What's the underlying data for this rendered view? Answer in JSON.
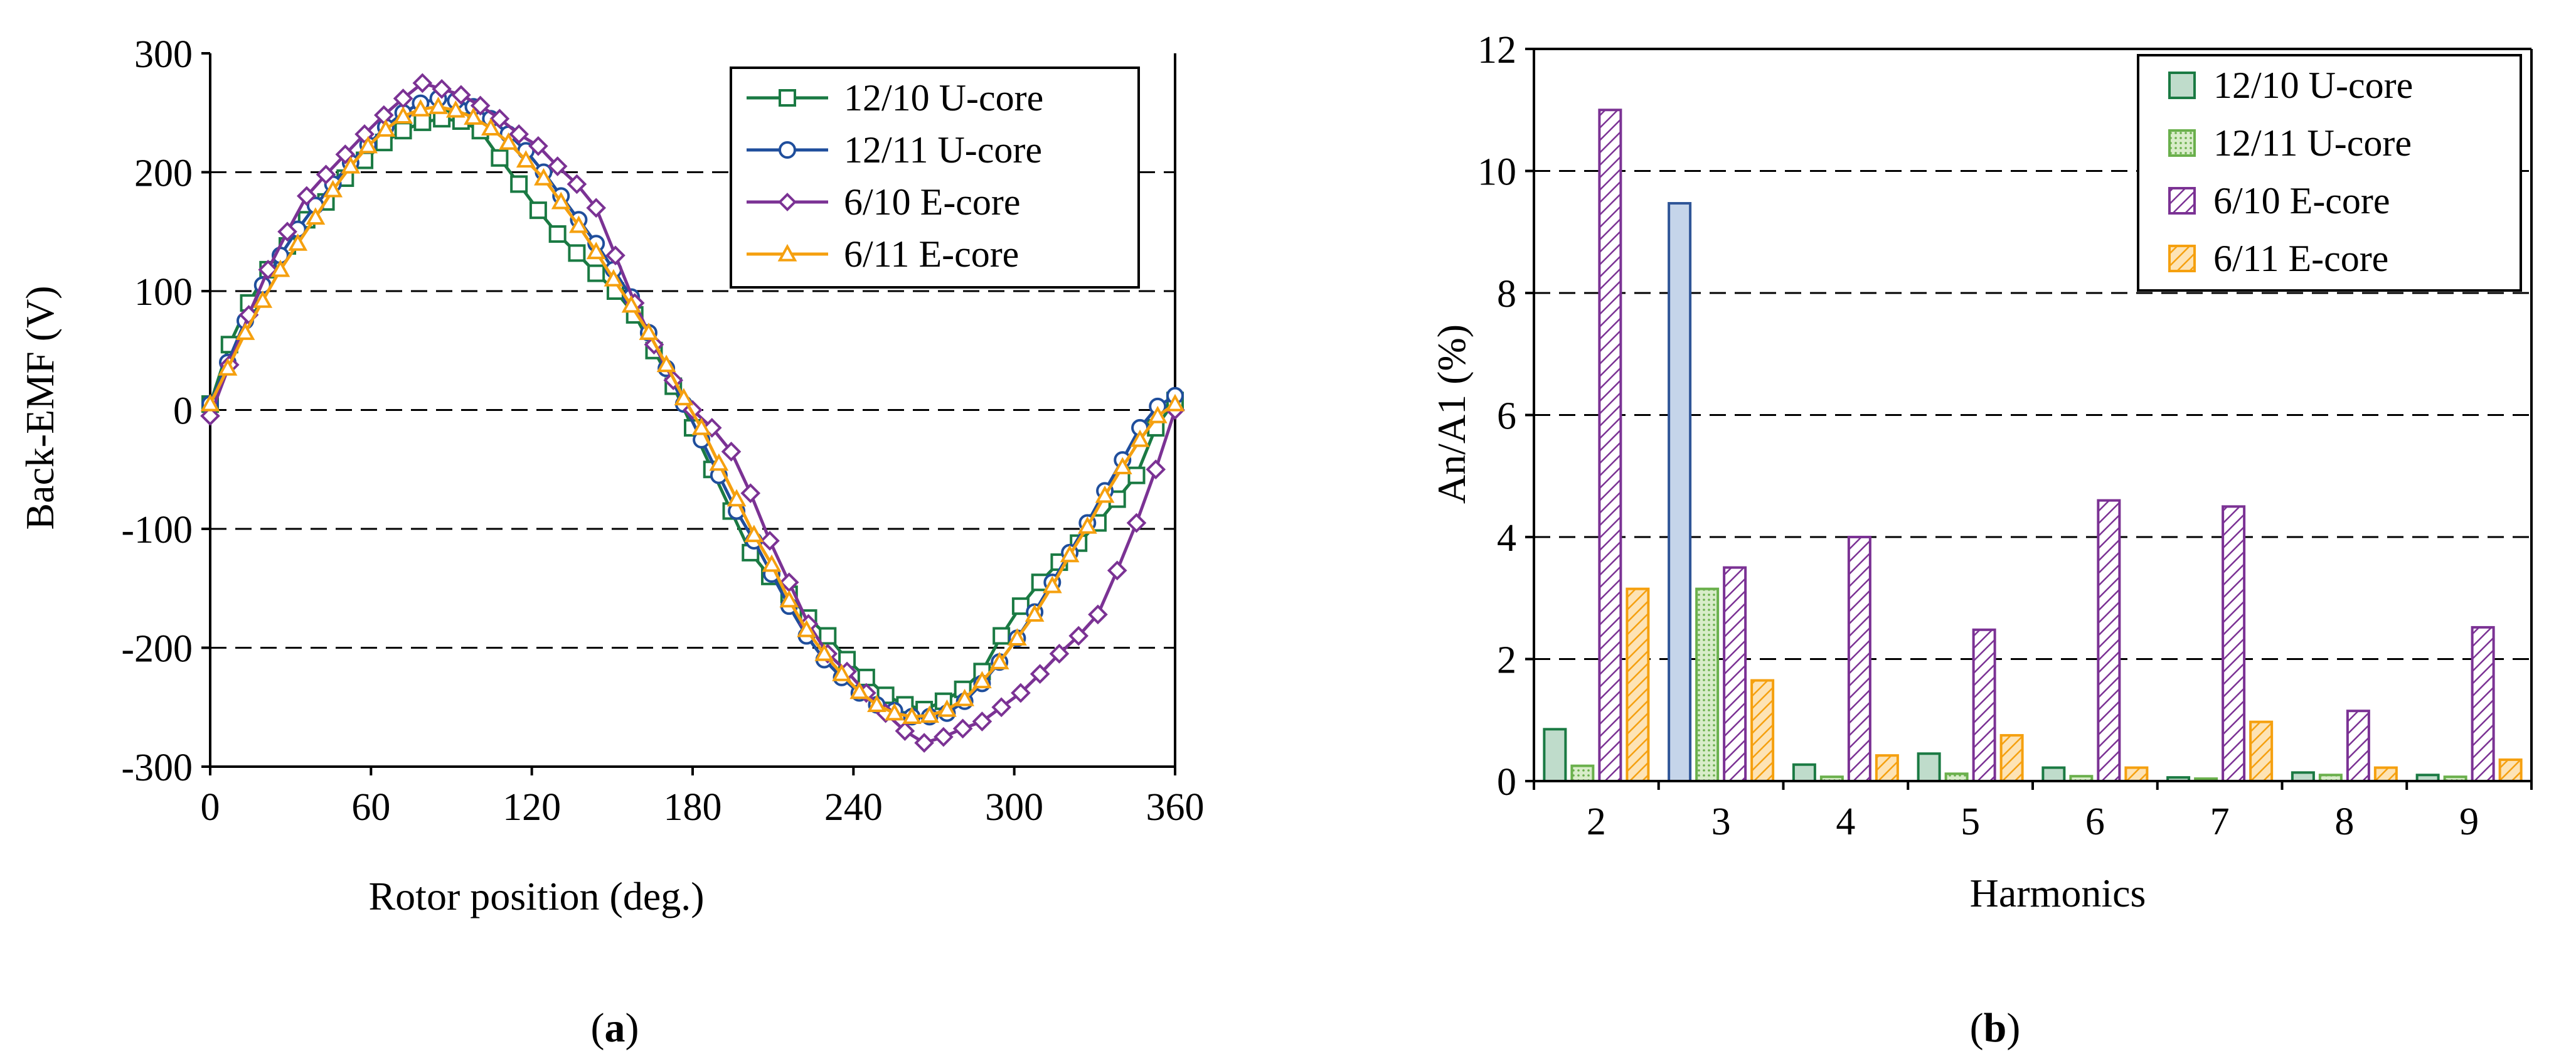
{
  "chart_data": [
    {
      "type": "line",
      "panel_label_open": "(",
      "panel_label_letter": "a",
      "panel_label_close": ")",
      "xlabel": "Rotor position (deg.)",
      "ylabel": "Back-EMF (V)",
      "xlim": [
        0,
        360
      ],
      "ylim": [
        -300,
        300
      ],
      "xticks": [
        0,
        60,
        120,
        180,
        240,
        300,
        360
      ],
      "yticks": [
        -300,
        -200,
        -100,
        0,
        100,
        200,
        300
      ],
      "grid": "horizontal dashed",
      "legend_position": "top-right",
      "series": [
        {
          "name": "12/10 U-core",
          "color": "#1a7a43",
          "marker": "square",
          "x": [
            0,
            7.2,
            14.4,
            21.6,
            28.8,
            36,
            43.2,
            50.4,
            57.6,
            64.8,
            72,
            79.2,
            86.4,
            93.6,
            100.8,
            108,
            115.2,
            122.4,
            129.6,
            136.8,
            144,
            151.2,
            158.4,
            165.6,
            172.8,
            180,
            187.2,
            194.4,
            201.6,
            208.8,
            216,
            223.2,
            230.4,
            237.6,
            244.8,
            252,
            259.2,
            266.4,
            273.6,
            280.8,
            288,
            295.2,
            302.4,
            309.6,
            316.8,
            324,
            331.2,
            338.4,
            345.6,
            352.8,
            360
          ],
          "y": [
            5,
            55,
            90,
            118,
            138,
            160,
            175,
            195,
            210,
            225,
            235,
            242,
            245,
            243,
            235,
            212,
            190,
            168,
            148,
            132,
            115,
            100,
            80,
            50,
            20,
            -15,
            -50,
            -85,
            -120,
            -140,
            -155,
            -175,
            -190,
            -210,
            -225,
            -240,
            -248,
            -252,
            -245,
            -235,
            -220,
            -190,
            -165,
            -145,
            -128,
            -112,
            -95,
            -75,
            -55,
            -15,
            8
          ]
        },
        {
          "name": "12/11 U-core",
          "color": "#1f4e9c",
          "marker": "circle",
          "x": [
            0,
            6.55,
            13.1,
            19.6,
            26.2,
            32.7,
            39.3,
            45.8,
            52.4,
            58.9,
            65.5,
            72,
            78.5,
            85.1,
            91.6,
            98.2,
            104.7,
            111.3,
            117.8,
            124.4,
            130.9,
            137.5,
            144,
            150.5,
            157.1,
            163.6,
            170.2,
            176.7,
            183.3,
            189.8,
            196.4,
            202.9,
            209.5,
            216,
            222.5,
            229.1,
            235.6,
            242.2,
            248.7,
            255.3,
            261.8,
            268.4,
            274.9,
            281.5,
            288,
            294.5,
            301.1,
            307.6,
            314.2,
            320.7,
            327.3,
            333.8,
            340.4,
            346.9,
            353.5,
            360
          ],
          "y": [
            5,
            40,
            75,
            105,
            130,
            152,
            172,
            190,
            208,
            223,
            238,
            250,
            258,
            262,
            260,
            255,
            245,
            232,
            218,
            200,
            180,
            160,
            140,
            118,
            95,
            65,
            35,
            5,
            -25,
            -55,
            -85,
            -110,
            -138,
            -165,
            -190,
            -210,
            -225,
            -238,
            -248,
            -253,
            -258,
            -258,
            -255,
            -245,
            -230,
            -212,
            -192,
            -170,
            -145,
            -120,
            -95,
            -68,
            -42,
            -15,
            3,
            12
          ]
        },
        {
          "name": "6/10 E-core",
          "color": "#7b3294",
          "marker": "diamond",
          "x": [
            0,
            7.2,
            14.4,
            21.6,
            28.8,
            36,
            43.2,
            50.4,
            57.6,
            64.8,
            72,
            79.2,
            86.4,
            93.6,
            100.8,
            108,
            115.2,
            122.4,
            129.6,
            136.8,
            144,
            151.2,
            158.4,
            165.6,
            172.8,
            180,
            187.2,
            194.4,
            201.6,
            208.8,
            216,
            223.2,
            230.4,
            237.6,
            244.8,
            252,
            259.2,
            266.4,
            273.6,
            280.8,
            288,
            295.2,
            302.4,
            309.6,
            316.8,
            324,
            331.2,
            338.4,
            345.6,
            352.8,
            360
          ],
          "y": [
            -5,
            38,
            80,
            118,
            150,
            180,
            198,
            215,
            232,
            248,
            262,
            275,
            270,
            265,
            256,
            245,
            232,
            222,
            205,
            190,
            170,
            130,
            90,
            55,
            25,
            0,
            -15,
            -35,
            -70,
            -110,
            -145,
            -180,
            -205,
            -220,
            -238,
            -255,
            -270,
            -280,
            -275,
            -268,
            -262,
            -250,
            -238,
            -222,
            -205,
            -190,
            -172,
            -135,
            -95,
            -50,
            0
          ]
        },
        {
          "name": "6/11 E-core",
          "color": "#f5a00f",
          "marker": "triangle",
          "x": [
            0,
            6.55,
            13.1,
            19.6,
            26.2,
            32.7,
            39.3,
            45.8,
            52.4,
            58.9,
            65.5,
            72,
            78.5,
            85.1,
            91.6,
            98.2,
            104.7,
            111.3,
            117.8,
            124.4,
            130.9,
            137.5,
            144,
            150.5,
            157.1,
            163.6,
            170.2,
            176.7,
            183.3,
            189.8,
            196.4,
            202.9,
            209.5,
            216,
            222.5,
            229.1,
            235.6,
            242.2,
            248.7,
            255.3,
            261.8,
            268.4,
            274.9,
            281.5,
            288,
            294.5,
            301.1,
            307.6,
            314.2,
            320.7,
            327.3,
            333.8,
            340.4,
            346.9,
            353.5,
            360
          ],
          "y": [
            5,
            35,
            65,
            92,
            118,
            140,
            162,
            185,
            205,
            222,
            236,
            247,
            253,
            255,
            252,
            246,
            237,
            225,
            210,
            195,
            175,
            155,
            133,
            110,
            88,
            65,
            38,
            10,
            -15,
            -45,
            -75,
            -105,
            -130,
            -160,
            -185,
            -205,
            -222,
            -237,
            -248,
            -255,
            -258,
            -257,
            -252,
            -243,
            -228,
            -212,
            -192,
            -172,
            -148,
            -122,
            -98,
            -72,
            -48,
            -25,
            -5,
            5
          ]
        }
      ]
    },
    {
      "type": "bar",
      "panel_label_open": "(",
      "panel_label_letter": "b",
      "panel_label_close": ")",
      "xlabel": "Harmonics",
      "ylabel": "An/A1 (%)",
      "categories": [
        "2",
        "3",
        "4",
        "5",
        "6",
        "7",
        "8",
        "9"
      ],
      "ylim": [
        0,
        12
      ],
      "yticks": [
        0,
        2,
        4,
        6,
        8,
        10,
        12
      ],
      "grid": "horizontal dashed",
      "legend_position": "top-right",
      "series": [
        {
          "name": "12/10 U-core",
          "color": "#1a7a43",
          "fill": "#bfdccb",
          "pattern": "solid",
          "values": [
            0.85,
            0.0,
            0.27,
            0.45,
            0.22,
            0.06,
            0.14,
            0.1
          ]
        },
        {
          "name": "12/11 U-core",
          "color": "#6ab04c",
          "fill": "#d8ecc9",
          "pattern": "dots",
          "values": [
            0.25,
            3.15,
            0.07,
            0.12,
            0.08,
            0.04,
            0.1,
            0.07
          ]
        },
        {
          "name": "6/10 E-core",
          "color": "#7b3294",
          "fill": "#ffffff",
          "pattern": "hatch",
          "values": [
            11.0,
            3.5,
            4.0,
            2.48,
            4.6,
            4.5,
            1.15,
            2.52
          ]
        },
        {
          "name": "6/11 E-core",
          "color": "#f5a00f",
          "fill": "#fde3b5",
          "pattern": "hatch",
          "values": [
            3.15,
            1.65,
            0.42,
            0.75,
            0.22,
            0.97,
            0.22,
            0.35
          ]
        }
      ],
      "extra_bars": [
        {
          "category_index": 1,
          "series_slot": 0,
          "value": 9.47,
          "color": "#2f5597",
          "fill": "#c5d5ea"
        }
      ]
    }
  ]
}
